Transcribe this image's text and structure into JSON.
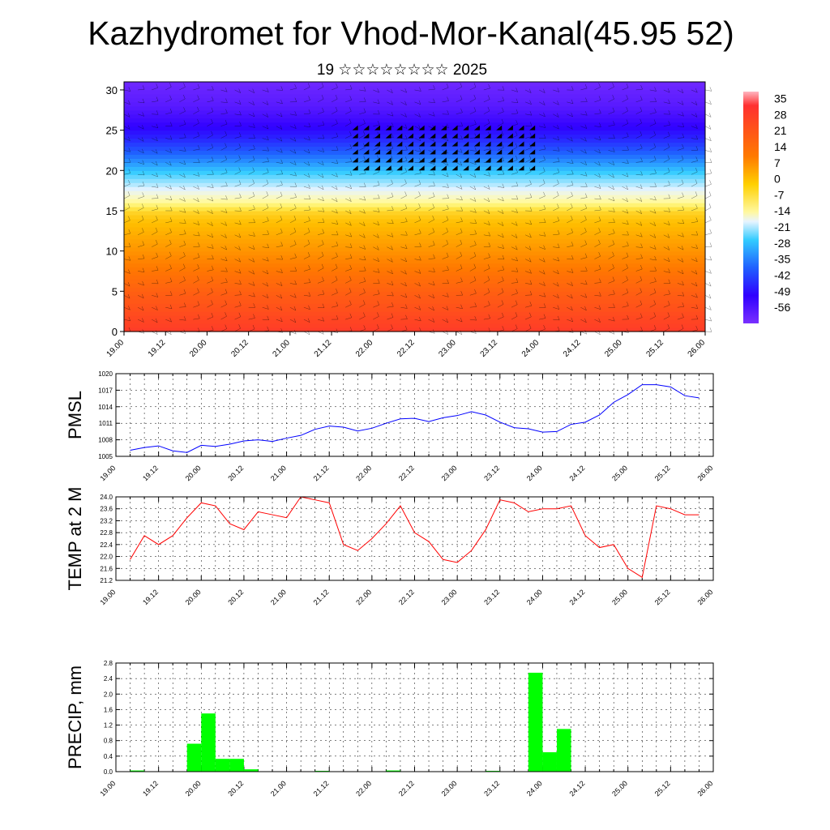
{
  "title": "Kazhydromet for Vhod-Mor-Kanal(45.95 52)",
  "subtitle": "19 ☆☆☆☆☆☆☆☆ 2025",
  "time_ticks": [
    "19.00",
    "19.12",
    "20.00",
    "20.12",
    "21.00",
    "21.12",
    "22.00",
    "22.12",
    "23.00",
    "23.12",
    "24.00",
    "24.12",
    "25.00",
    "25.12",
    "26.00"
  ],
  "chart_data": [
    {
      "type": "heatmap",
      "name": "cross-section",
      "y_ticks": [
        "0",
        "5",
        "10",
        "15",
        "20",
        "25",
        "30"
      ],
      "ylim": [
        0,
        31
      ],
      "xlim": [
        0,
        42
      ],
      "colorbar": {
        "labels": [
          "35",
          "28",
          "21",
          "14",
          "7",
          "0",
          "-7",
          "-14",
          "-21",
          "-28",
          "-35",
          "-42",
          "-49",
          "-56"
        ],
        "min": -63,
        "max": 38
      },
      "temperature_profile": {
        "levels": [
          0,
          2,
          5,
          8,
          10,
          12,
          14,
          15,
          16,
          17,
          18,
          20,
          22,
          24,
          26,
          28,
          31
        ],
        "values": [
          33,
          30,
          26,
          21,
          17,
          13,
          9,
          6,
          -2,
          -8,
          -14,
          -25,
          -36,
          -45,
          -52,
          -57,
          -61
        ]
      }
    },
    {
      "type": "line",
      "ylabel": "PMSL",
      "ylim": [
        1005,
        1020
      ],
      "y_ticks": [
        "1005",
        "1008",
        "1011",
        "1014",
        "1017",
        "1020"
      ],
      "x": [
        0,
        1,
        2,
        3,
        4,
        5,
        6,
        7,
        8,
        9,
        10,
        11,
        12,
        13,
        14,
        15,
        16,
        17,
        18,
        19,
        20,
        21,
        22,
        23,
        24,
        25,
        26,
        27,
        28,
        29,
        30,
        31,
        32,
        33,
        34,
        35,
        36,
        37,
        38,
        39,
        40
      ],
      "values": [
        1006.1,
        1006.6,
        1006.9,
        1006.0,
        1005.7,
        1007.0,
        1006.8,
        1007.2,
        1007.8,
        1008.0,
        1007.7,
        1008.3,
        1008.8,
        1009.9,
        1010.5,
        1010.3,
        1009.6,
        1010.1,
        1011.0,
        1011.8,
        1011.9,
        1011.3,
        1012.0,
        1012.4,
        1013.1,
        1012.5,
        1011.2,
        1010.2,
        1010.0,
        1009.4,
        1009.5,
        1010.8,
        1011.2,
        1012.5,
        1014.8,
        1016.2,
        1018.0,
        1018.0,
        1017.6,
        1016.0,
        1015.6
      ],
      "color": "#0000ff"
    },
    {
      "type": "line",
      "ylabel": "TEMP at 2 M",
      "ylim": [
        21.2,
        24.0
      ],
      "y_ticks": [
        "21.2",
        "21.6",
        "22.0",
        "22.4",
        "22.8",
        "23.2",
        "23.6",
        "24.0"
      ],
      "x": [
        0,
        1,
        2,
        3,
        4,
        5,
        6,
        7,
        8,
        9,
        10,
        11,
        12,
        13,
        14,
        15,
        16,
        17,
        18,
        19,
        20,
        21,
        22,
        23,
        24,
        25,
        26,
        27,
        28,
        29,
        30,
        31,
        32,
        33,
        34,
        35,
        36,
        37,
        38,
        39,
        40
      ],
      "values": [
        21.9,
        22.7,
        22.4,
        22.7,
        23.3,
        23.8,
        23.7,
        23.1,
        22.9,
        23.5,
        23.4,
        23.3,
        24.0,
        23.9,
        23.8,
        22.4,
        22.2,
        22.6,
        23.1,
        23.7,
        22.8,
        22.5,
        21.9,
        21.8,
        22.2,
        22.9,
        23.9,
        23.8,
        23.5,
        23.6,
        23.6,
        23.7,
        22.7,
        22.3,
        22.4,
        21.6,
        21.3,
        23.7,
        23.6,
        23.4,
        23.4
      ],
      "color": "#ff0000"
    },
    {
      "type": "bar",
      "ylabel": "PRECIP, mm",
      "ylim": [
        0,
        2.8
      ],
      "y_ticks": [
        "0.0",
        "0.4",
        "0.8",
        "1.2",
        "1.6",
        "2.0",
        "2.4",
        "2.8"
      ],
      "x": [
        0.5,
        1.5,
        2.5,
        3.5,
        4.5,
        5.5,
        6.5,
        7.5,
        8.5,
        9.5,
        10.5,
        11.5,
        12.5,
        13.5,
        14.5,
        15.5,
        16.5,
        17.5,
        18.5,
        19.5,
        20.5,
        21.5,
        22.5,
        23.5,
        24.5,
        25.5,
        26.5,
        27.5,
        28.5,
        29.5,
        30.5,
        31.5,
        32.5,
        33.5,
        34.5,
        35.5,
        36.5,
        37.5,
        38.5,
        39.5,
        40.5,
        41.5
      ],
      "values": [
        0,
        0.03,
        0,
        0,
        0,
        0.72,
        1.5,
        0.33,
        0.33,
        0.06,
        0,
        0,
        0,
        0,
        0.02,
        0,
        0,
        0,
        0,
        0.03,
        0,
        0,
        0,
        0,
        0,
        0,
        0.02,
        0,
        0,
        2.55,
        0.5,
        1.1,
        0,
        0,
        0,
        0,
        0,
        0,
        0,
        0,
        0,
        0
      ],
      "color": "#00ff00"
    }
  ]
}
